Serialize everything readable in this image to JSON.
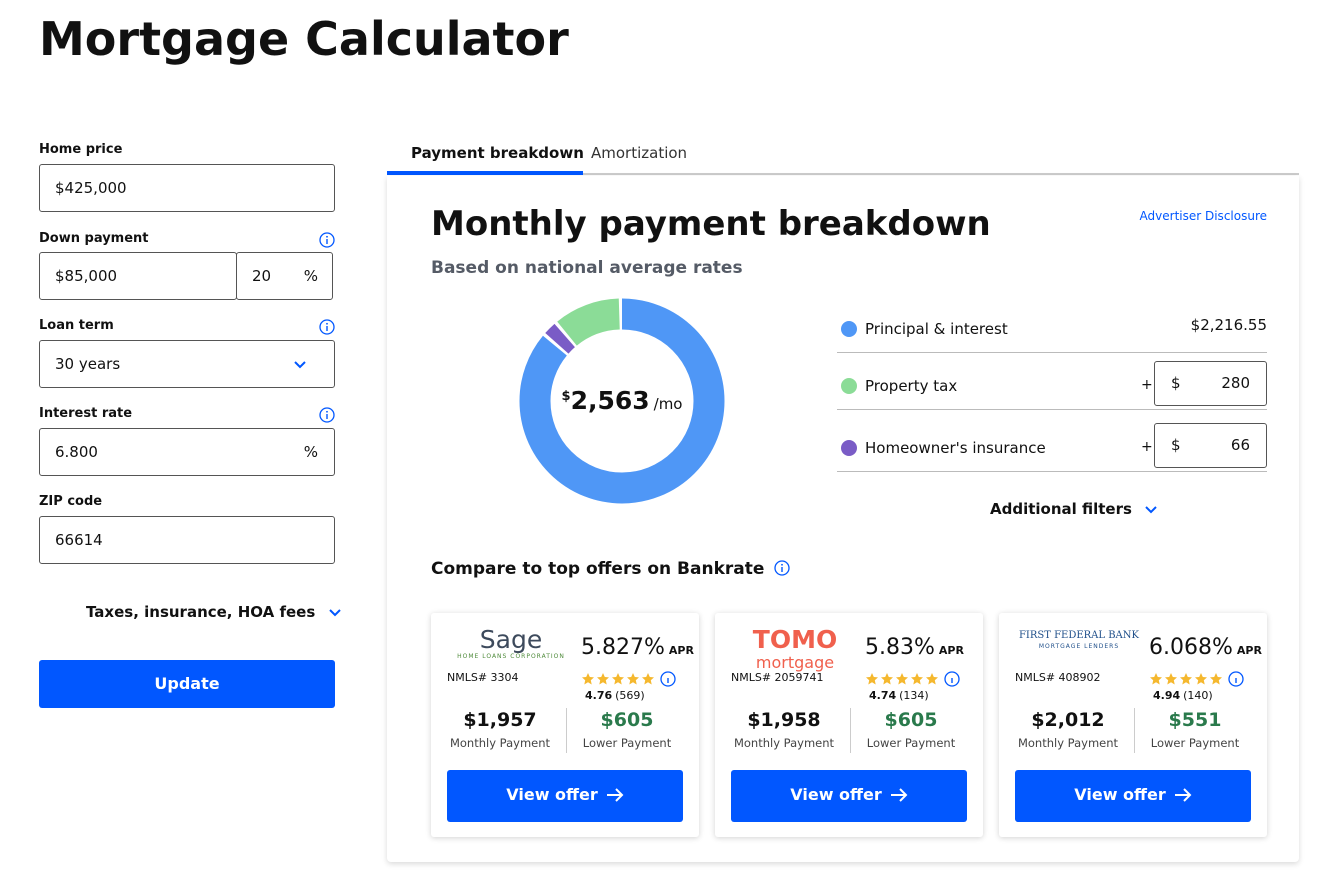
{
  "title": "Mortgage Calculator",
  "form": {
    "fields": [
      {
        "label": "Home price",
        "value": "$425,000"
      },
      {
        "label": "Down payment",
        "value": "$85,000",
        "percent": "20",
        "unit": "%"
      },
      {
        "label": "Loan term",
        "value": "30 years"
      },
      {
        "label": "Interest rate",
        "value": "6.800",
        "unit": "%"
      },
      {
        "label": "ZIP code",
        "value": "66614"
      }
    ],
    "taxes_link": "Taxes, insurance, HOA fees",
    "update_button": "Update"
  },
  "tabs": [
    "Payment breakdown",
    "Amortization"
  ],
  "breakdown": {
    "title": "Monthly payment breakdown",
    "subtitle": "Based on national average rates",
    "disclosure": "Advertiser Disclosure",
    "total": {
      "currency": "$",
      "amount": "2,563",
      "unit": "/mo"
    },
    "items": [
      {
        "name": "Principal & interest",
        "color": "#4f97f6",
        "value": 2216.55,
        "label": "$2,216.55"
      },
      {
        "name": "Property tax",
        "color": "#8bdc97",
        "prefix": "+",
        "currency": "$",
        "value": 280
      },
      {
        "name": "Homeowner's insurance",
        "color": "#7a5cc6",
        "prefix": "+",
        "currency": "$",
        "value": 66
      }
    ],
    "filters": "Additional filters"
  },
  "offers": {
    "title": "Compare to top offers on Bankrate",
    "cards": [
      {
        "lender": "Sage",
        "lender_sub": "HOME LOANS CORPORATION",
        "logo_color": "#3d4a5c",
        "nmls": "NMLS# 3304",
        "apr": "5.827%",
        "apr_unit": "APR",
        "rating": "4.76",
        "reviews": "(569)",
        "monthly": "$1,957",
        "monthly_label": "Monthly Payment",
        "lower": "$605",
        "lower_label": "Lower Payment",
        "button": "View offer"
      },
      {
        "lender": "TOMO",
        "lender_sub": "mortgage",
        "logo_color": "#f0604d",
        "nmls": "NMLS# 2059741",
        "apr": "5.83%",
        "apr_unit": "APR",
        "rating": "4.74",
        "reviews": "(134)",
        "monthly": "$1,958",
        "monthly_label": "Monthly Payment",
        "lower": "$605",
        "lower_label": "Lower Payment",
        "button": "View offer"
      },
      {
        "lender": "FIRST FEDERAL BANK",
        "lender_sub": "MORTGAGE LENDERS",
        "logo_color": "#1f4f8a",
        "nmls": "NMLS# 408902",
        "apr": "6.068%",
        "apr_unit": "APR",
        "rating": "4.94",
        "reviews": "(140)",
        "monthly": "$2,012",
        "monthly_label": "Monthly Payment",
        "lower": "$551",
        "lower_label": "Lower Payment",
        "button": "View offer"
      }
    ]
  }
}
